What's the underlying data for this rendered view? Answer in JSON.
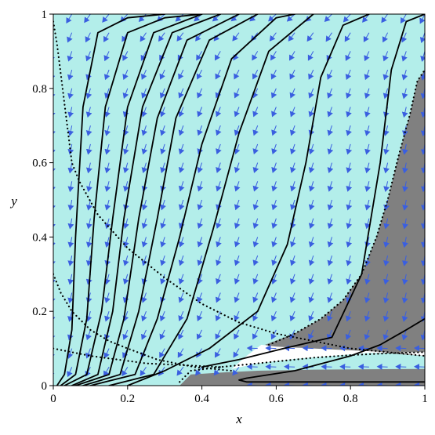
{
  "colors": {
    "background_region": "#b3eeea",
    "shaded_region": "#808080",
    "white_region": "#ffffff",
    "arrow": "#3a5fe0",
    "trajectory": "#000000",
    "dotted_curve": "#000000"
  },
  "chart_data": {
    "type": "line",
    "title": "",
    "xlabel": "x",
    "ylabel": "y",
    "xlim": [
      0,
      1
    ],
    "ylim": [
      0,
      1
    ],
    "x_ticks": [
      "0",
      "0.2",
      "0.4",
      "0.6",
      "0.8",
      "1"
    ],
    "y_ticks": [
      "0",
      "0.2",
      "0.4",
      "0.6",
      "0.8",
      "1"
    ],
    "grid": false,
    "legend": "none",
    "vector_field": "direction arrows on a regular grid",
    "series": [
      {
        "style": "solid",
        "points": [
          [
            0.01,
            0.0
          ],
          [
            0.03,
            0.03
          ],
          [
            0.05,
            0.15
          ],
          [
            0.06,
            0.4
          ],
          [
            0.08,
            0.75
          ],
          [
            0.12,
            0.95
          ],
          [
            0.2,
            0.99
          ],
          [
            0.3,
            1.0
          ]
        ]
      },
      {
        "style": "solid",
        "points": [
          [
            0.02,
            0.0
          ],
          [
            0.06,
            0.03
          ],
          [
            0.09,
            0.18
          ],
          [
            0.11,
            0.45
          ],
          [
            0.14,
            0.75
          ],
          [
            0.2,
            0.95
          ],
          [
            0.3,
            0.99
          ],
          [
            0.4,
            1.0
          ]
        ]
      },
      {
        "style": "solid",
        "points": [
          [
            0.03,
            0.0
          ],
          [
            0.09,
            0.03
          ],
          [
            0.13,
            0.2
          ],
          [
            0.16,
            0.45
          ],
          [
            0.2,
            0.75
          ],
          [
            0.27,
            0.95
          ],
          [
            0.4,
            1.0
          ]
        ]
      },
      {
        "style": "solid",
        "points": [
          [
            0.05,
            0.0
          ],
          [
            0.12,
            0.03
          ],
          [
            0.16,
            0.2
          ],
          [
            0.19,
            0.45
          ],
          [
            0.24,
            0.75
          ],
          [
            0.32,
            0.95
          ],
          [
            0.45,
            1.0
          ]
        ]
      },
      {
        "style": "solid",
        "points": [
          [
            0.06,
            0.0
          ],
          [
            0.15,
            0.03
          ],
          [
            0.19,
            0.18
          ],
          [
            0.23,
            0.45
          ],
          [
            0.28,
            0.72
          ],
          [
            0.36,
            0.93
          ],
          [
            0.5,
            1.0
          ]
        ]
      },
      {
        "style": "solid",
        "points": [
          [
            0.08,
            0.0
          ],
          [
            0.18,
            0.03
          ],
          [
            0.23,
            0.2
          ],
          [
            0.28,
            0.45
          ],
          [
            0.33,
            0.72
          ],
          [
            0.42,
            0.93
          ],
          [
            0.55,
            1.0
          ]
        ]
      },
      {
        "style": "solid",
        "points": [
          [
            0.1,
            0.0
          ],
          [
            0.22,
            0.03
          ],
          [
            0.28,
            0.18
          ],
          [
            0.34,
            0.4
          ],
          [
            0.4,
            0.65
          ],
          [
            0.48,
            0.88
          ],
          [
            0.6,
            0.99
          ],
          [
            0.65,
            1.0
          ]
        ]
      },
      {
        "style": "solid",
        "points": [
          [
            0.15,
            0.0
          ],
          [
            0.27,
            0.03
          ],
          [
            0.36,
            0.18
          ],
          [
            0.43,
            0.42
          ],
          [
            0.5,
            0.68
          ],
          [
            0.58,
            0.9
          ],
          [
            0.7,
            1.0
          ]
        ]
      },
      {
        "style": "solid",
        "points": [
          [
            0.2,
            0.0
          ],
          [
            0.3,
            0.04
          ],
          [
            0.42,
            0.1
          ],
          [
            0.55,
            0.2
          ],
          [
            0.63,
            0.38
          ],
          [
            0.68,
            0.6
          ],
          [
            0.72,
            0.83
          ],
          [
            0.78,
            0.97
          ],
          [
            0.85,
            1.0
          ]
        ]
      },
      {
        "style": "solid",
        "points": [
          [
            0.4,
            0.05
          ],
          [
            0.5,
            0.07
          ],
          [
            0.62,
            0.1
          ],
          [
            0.75,
            0.13
          ],
          [
            0.83,
            0.3
          ],
          [
            0.88,
            0.6
          ],
          [
            0.91,
            0.85
          ],
          [
            0.95,
            0.98
          ],
          [
            1.0,
            1.0
          ]
        ]
      },
      {
        "style": "solid",
        "points": [
          [
            1.0,
            0.18
          ],
          [
            0.95,
            0.15
          ],
          [
            0.88,
            0.11
          ],
          [
            0.8,
            0.08
          ],
          [
            0.65,
            0.04
          ],
          [
            0.52,
            0.02
          ],
          [
            0.5,
            0.015
          ],
          [
            0.52,
            0.01
          ],
          [
            0.6,
            0.01
          ],
          [
            0.8,
            0.01
          ],
          [
            1.0,
            0.01
          ]
        ]
      },
      {
        "style": "dotted",
        "points": [
          [
            0.0,
            0.98
          ],
          [
            0.01,
            0.92
          ],
          [
            0.02,
            0.84
          ],
          [
            0.03,
            0.76
          ],
          [
            0.05,
            0.6
          ],
          [
            0.07,
            0.55
          ],
          [
            0.12,
            0.46
          ],
          [
            0.2,
            0.37
          ],
          [
            0.3,
            0.29
          ],
          [
            0.4,
            0.22
          ],
          [
            0.5,
            0.17
          ],
          [
            0.6,
            0.14
          ],
          [
            0.7,
            0.12
          ],
          [
            0.8,
            0.1
          ],
          [
            0.9,
            0.09
          ],
          [
            1.0,
            0.08
          ]
        ]
      },
      {
        "style": "dotted",
        "points": [
          [
            0.0,
            0.3
          ],
          [
            0.02,
            0.25
          ],
          [
            0.05,
            0.2
          ],
          [
            0.1,
            0.15
          ],
          [
            0.15,
            0.12
          ],
          [
            0.2,
            0.1
          ],
          [
            0.28,
            0.07
          ],
          [
            0.38,
            0.05
          ],
          [
            0.48,
            0.04
          ]
        ]
      },
      {
        "style": "dotted",
        "points": [
          [
            0.0,
            0.1
          ],
          [
            0.1,
            0.08
          ],
          [
            0.25,
            0.06
          ],
          [
            0.45,
            0.05
          ]
        ]
      },
      {
        "style": "dotted",
        "points": [
          [
            0.34,
            0.01
          ],
          [
            0.37,
            0.04
          ],
          [
            0.41,
            0.045
          ],
          [
            0.45,
            0.05
          ],
          [
            0.5,
            0.055
          ],
          [
            0.55,
            0.06
          ],
          [
            0.6,
            0.065
          ],
          [
            0.7,
            0.075
          ],
          [
            0.8,
            0.082
          ],
          [
            0.9,
            0.087
          ],
          [
            1.0,
            0.09
          ]
        ]
      },
      {
        "style": "dotted",
        "points": [
          [
            0.58,
            0.11
          ],
          [
            0.65,
            0.14
          ],
          [
            0.72,
            0.18
          ],
          [
            0.78,
            0.23
          ],
          [
            0.83,
            0.3
          ],
          [
            0.87,
            0.4
          ],
          [
            0.9,
            0.5
          ],
          [
            0.93,
            0.62
          ],
          [
            0.96,
            0.73
          ],
          [
            0.98,
            0.82
          ],
          [
            1.0,
            0.85
          ]
        ]
      }
    ],
    "shaded_regions": [
      {
        "fill": "shaded_region",
        "polygon": [
          [
            0.57,
            0.11
          ],
          [
            0.65,
            0.14
          ],
          [
            0.72,
            0.18
          ],
          [
            0.78,
            0.23
          ],
          [
            0.83,
            0.3
          ],
          [
            0.87,
            0.4
          ],
          [
            0.9,
            0.5
          ],
          [
            0.93,
            0.62
          ],
          [
            0.96,
            0.73
          ],
          [
            0.98,
            0.82
          ],
          [
            1.0,
            0.85
          ],
          [
            1.0,
            0.08
          ],
          [
            0.9,
            0.087
          ],
          [
            0.8,
            0.09
          ],
          [
            0.7,
            0.095
          ],
          [
            0.6,
            0.1
          ]
        ]
      },
      {
        "fill": "white_region",
        "polygon": [
          [
            0.48,
            0.045
          ],
          [
            0.55,
            0.06
          ],
          [
            0.65,
            0.072
          ],
          [
            0.75,
            0.08
          ],
          [
            0.85,
            0.088
          ],
          [
            1.0,
            0.09
          ],
          [
            1.0,
            0.08
          ],
          [
            0.9,
            0.09
          ],
          [
            0.8,
            0.095
          ],
          [
            0.7,
            0.1
          ],
          [
            0.6,
            0.105
          ],
          [
            0.56,
            0.11
          ],
          [
            0.52,
            0.08
          ]
        ]
      },
      {
        "fill": "shaded_region",
        "polygon": [
          [
            0.34,
            0.0
          ],
          [
            0.37,
            0.03
          ],
          [
            0.45,
            0.035
          ],
          [
            0.55,
            0.04
          ],
          [
            0.7,
            0.043
          ],
          [
            1.0,
            0.045
          ],
          [
            1.0,
            0.0
          ]
        ]
      }
    ]
  }
}
